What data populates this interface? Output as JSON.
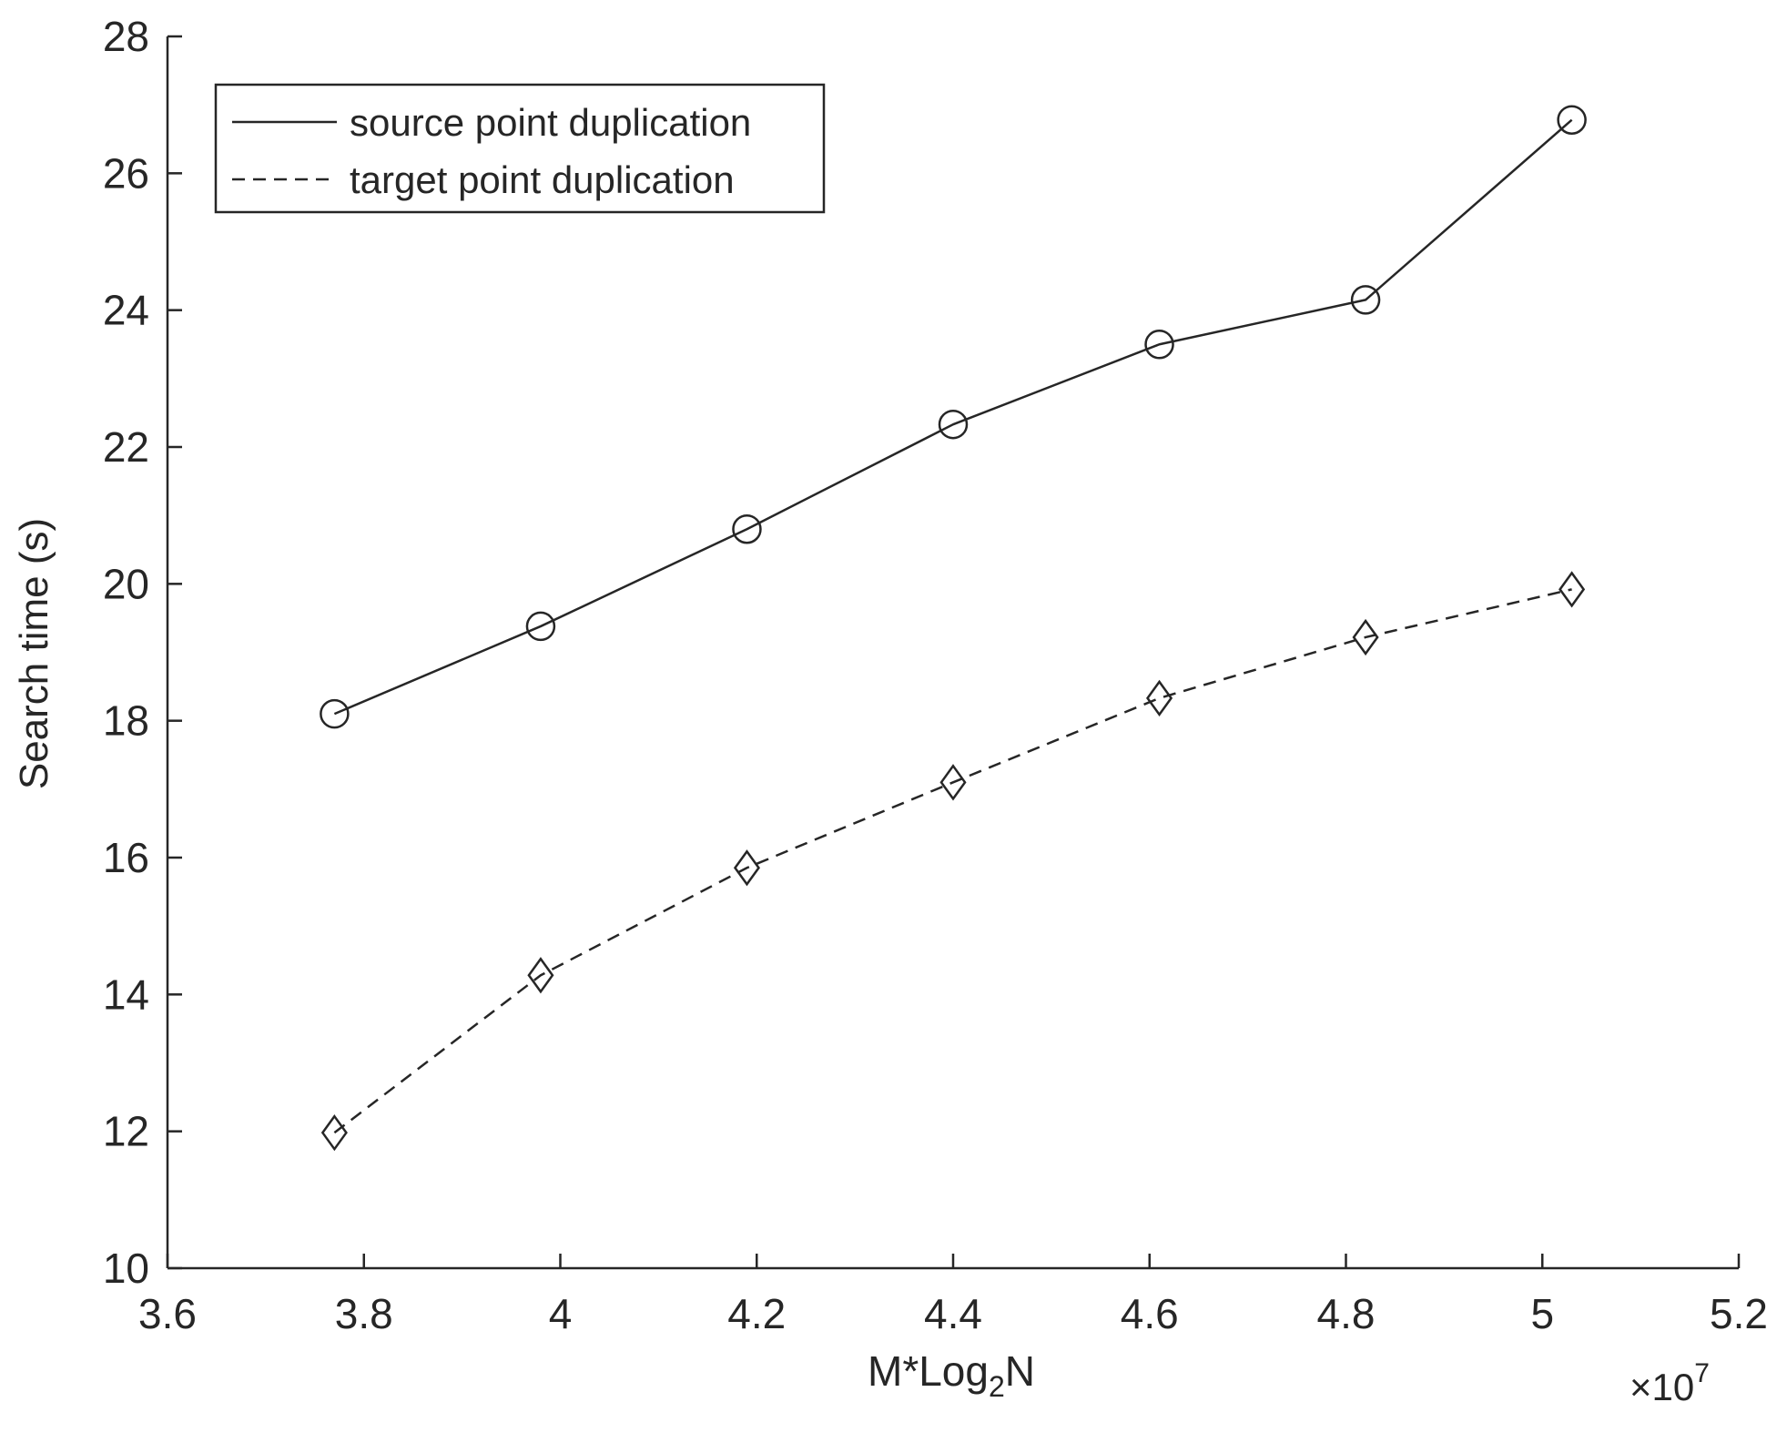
{
  "chart_data": {
    "type": "line",
    "xlabel_main": "M*Log",
    "xlabel_sub": "2",
    "xlabel_tail": "N",
    "ylabel": "Search time (s)",
    "x_multiplier_prefix": "×10",
    "x_multiplier_exp": "7",
    "xlim": [
      3.6,
      5.2
    ],
    "ylim": [
      10,
      28
    ],
    "x_ticks": [
      3.6,
      3.8,
      4.0,
      4.2,
      4.4,
      4.6,
      4.8,
      5.0,
      5.2
    ],
    "x_tick_labels": [
      "3.6",
      "3.8",
      "4",
      "4.2",
      "4.4",
      "4.6",
      "4.8",
      "5",
      "5.2"
    ],
    "y_ticks": [
      10,
      12,
      14,
      16,
      18,
      20,
      22,
      24,
      26,
      28
    ],
    "y_tick_labels": [
      "10",
      "12",
      "14",
      "16",
      "18",
      "20",
      "22",
      "24",
      "26",
      "28"
    ],
    "grid": false,
    "legend_position": "top-left",
    "x": [
      3.77,
      3.98,
      4.19,
      4.4,
      4.61,
      4.82,
      5.03
    ],
    "series": [
      {
        "name": "source point duplication",
        "line_style": "solid",
        "marker": "circle",
        "values": [
          18.1,
          19.38,
          20.8,
          22.33,
          23.5,
          24.15,
          26.78
        ]
      },
      {
        "name": "target point duplication",
        "line_style": "dashed",
        "marker": "diamond",
        "values": [
          11.98,
          14.28,
          15.85,
          17.1,
          18.33,
          19.22,
          19.92
        ]
      }
    ],
    "colors": {
      "line": "#262626",
      "axis": "#262626",
      "background": "#ffffff"
    }
  }
}
